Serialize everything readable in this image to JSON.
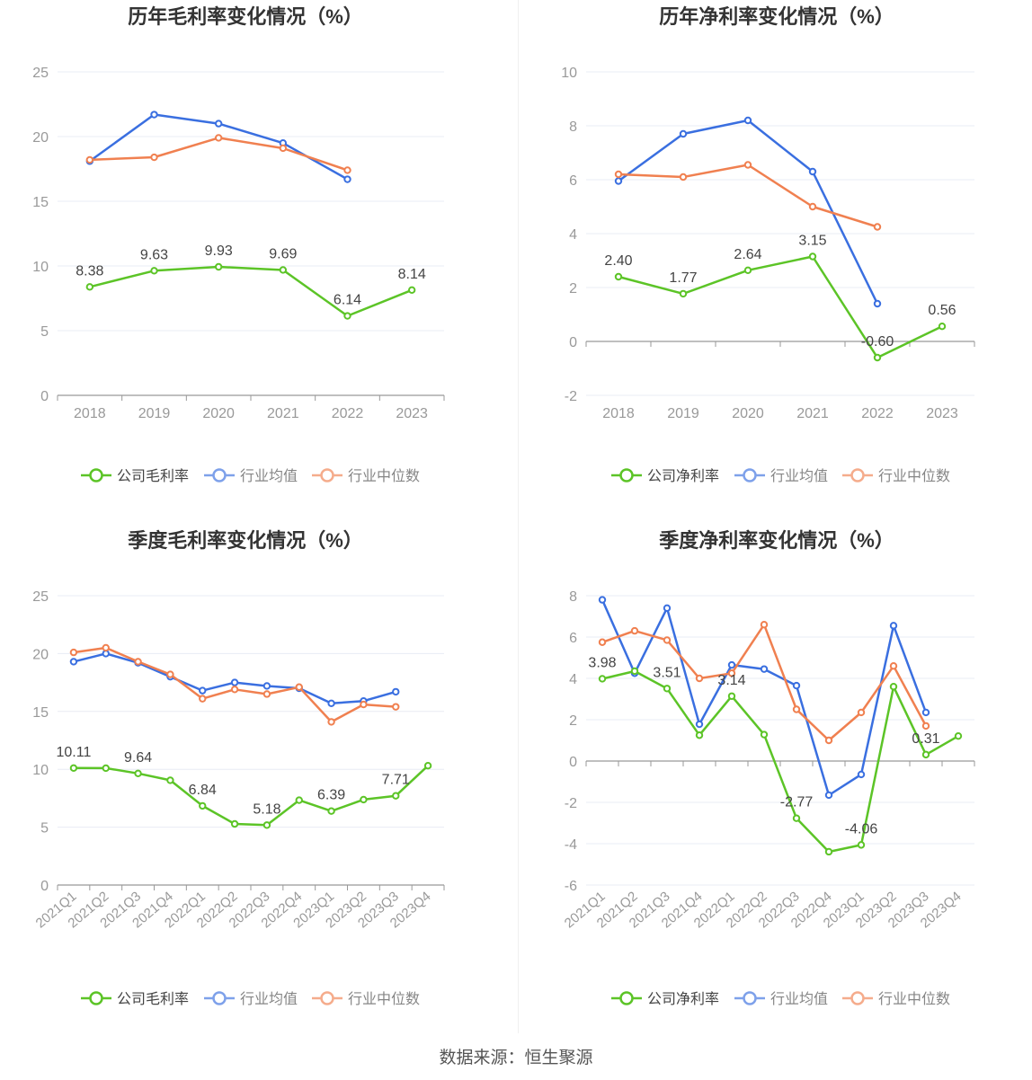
{
  "source": "数据来源：恒生聚源",
  "colors": {
    "company": "#5cc427",
    "avg": "#3a6fe0",
    "median": "#f08050",
    "axis": "#999999",
    "grid": "#e8ecf4",
    "zero": "#999999"
  },
  "chart_data": [
    {
      "type": "line",
      "title": "历年毛利率变化情况（%）",
      "categories": [
        "2018",
        "2019",
        "2020",
        "2021",
        "2022",
        "2023"
      ],
      "ylim": [
        0,
        25
      ],
      "yticks": [
        0,
        5,
        10,
        15,
        20,
        25
      ],
      "series": [
        {
          "name": "公司毛利率",
          "values": [
            8.38,
            9.63,
            9.93,
            9.69,
            6.14,
            8.14
          ],
          "labels": [
            "8.38",
            "9.63",
            "9.93",
            "9.69",
            "6.14",
            "8.14"
          ]
        },
        {
          "name": "行业均值",
          "values": [
            18.1,
            21.7,
            21.0,
            19.5,
            16.7,
            null
          ]
        },
        {
          "name": "行业中位数",
          "values": [
            18.2,
            18.4,
            19.9,
            19.1,
            17.4,
            null
          ]
        }
      ],
      "legend": "bottom"
    },
    {
      "type": "line",
      "title": "历年净利率变化情况（%）",
      "categories": [
        "2018",
        "2019",
        "2020",
        "2021",
        "2022",
        "2023"
      ],
      "ylim": [
        -2,
        10
      ],
      "yticks": [
        -2,
        0,
        2,
        4,
        6,
        8,
        10
      ],
      "series": [
        {
          "name": "公司净利率",
          "values": [
            2.4,
            1.77,
            2.64,
            3.15,
            -0.6,
            0.56
          ],
          "labels": [
            "2.40",
            "1.77",
            "2.64",
            "3.15",
            "-0.60",
            "0.56"
          ]
        },
        {
          "name": "行业均值",
          "values": [
            5.95,
            7.7,
            8.2,
            6.3,
            1.4,
            null
          ]
        },
        {
          "name": "行业中位数",
          "values": [
            6.2,
            6.1,
            6.55,
            5.0,
            4.25,
            null
          ]
        }
      ],
      "legend": "bottom"
    },
    {
      "type": "line",
      "title": "季度毛利率变化情况（%）",
      "categories": [
        "2021Q1",
        "2021Q2",
        "2021Q3",
        "2021Q4",
        "2022Q1",
        "2022Q2",
        "2022Q3",
        "2022Q4",
        "2023Q1",
        "2023Q2",
        "2023Q3",
        "2023Q4"
      ],
      "ylim": [
        0,
        25
      ],
      "yticks": [
        0,
        5,
        10,
        15,
        20,
        25
      ],
      "series": [
        {
          "name": "公司毛利率",
          "values": [
            10.11,
            10.1,
            9.64,
            9.05,
            6.84,
            5.28,
            5.18,
            7.33,
            6.39,
            7.38,
            7.71,
            10.31
          ],
          "labels": [
            "10.11",
            "",
            "9.64",
            "",
            "6.84",
            "",
            "5.18",
            "",
            "6.39",
            "",
            "7.71",
            ""
          ]
        },
        {
          "name": "行业均值",
          "values": [
            19.3,
            20.0,
            19.2,
            18.0,
            16.8,
            17.5,
            17.2,
            17.0,
            15.7,
            15.9,
            16.7,
            null
          ]
        },
        {
          "name": "行业中位数",
          "values": [
            20.1,
            20.5,
            19.3,
            18.2,
            16.1,
            16.9,
            16.5,
            17.1,
            14.1,
            15.6,
            15.4,
            null
          ]
        }
      ],
      "legend": "bottom"
    },
    {
      "type": "line",
      "title": "季度净利率变化情况（%）",
      "categories": [
        "2021Q1",
        "2021Q2",
        "2021Q3",
        "2021Q4",
        "2022Q1",
        "2022Q2",
        "2022Q3",
        "2022Q4",
        "2023Q1",
        "2023Q2",
        "2023Q3",
        "2023Q4"
      ],
      "ylim": [
        -6,
        8
      ],
      "yticks": [
        -6,
        -4,
        -2,
        0,
        2,
        4,
        6,
        8
      ],
      "series": [
        {
          "name": "公司净利率",
          "values": [
            3.98,
            4.35,
            3.51,
            1.25,
            3.14,
            1.28,
            -2.77,
            -4.39,
            -4.06,
            3.6,
            0.31,
            1.21
          ],
          "labels": [
            "3.98",
            "",
            "3.51",
            "",
            "3.14",
            "",
            "-2.77",
            "",
            "-4.06",
            "",
            "0.31",
            ""
          ]
        },
        {
          "name": "行业均值",
          "values": [
            7.8,
            4.25,
            7.4,
            1.78,
            4.65,
            4.45,
            3.65,
            -1.65,
            -0.65,
            6.55,
            2.35,
            null
          ]
        },
        {
          "name": "行业中位数",
          "values": [
            5.75,
            6.3,
            5.85,
            4.0,
            4.25,
            6.6,
            2.5,
            1.0,
            2.35,
            4.6,
            1.7,
            null
          ]
        }
      ],
      "legend": "bottom"
    }
  ]
}
